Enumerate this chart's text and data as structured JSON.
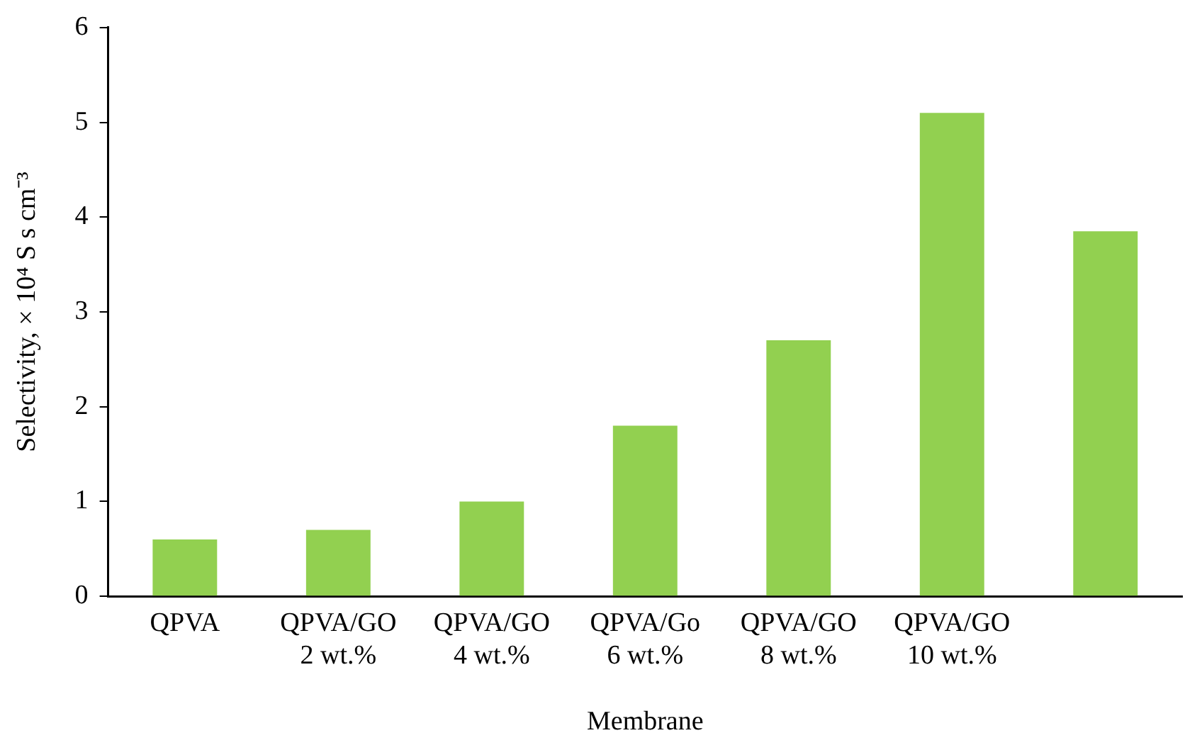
{
  "chart_data": {
    "type": "bar",
    "categories": [
      "QPVA",
      "QPVA/GO\n2 wt.%",
      "QPVA/GO\n4 wt.%",
      "QPVA/Go\n6 wt.%",
      "QPVA/GO\n8 wt.%",
      "QPVA/GO\n10 wt.%",
      null
    ],
    "values": [
      0.6,
      0.7,
      1.0,
      1.8,
      2.7,
      5.1,
      3.85
    ],
    "color": "#92d050",
    "xlabel": "Membrane",
    "ylabel": "Selectivity, × 10⁴ S s cm⁻³",
    "ylim": [
      0,
      6
    ],
    "yticks": [
      0,
      1,
      2,
      3,
      4,
      5,
      6
    ],
    "grid": false,
    "legend": false
  }
}
